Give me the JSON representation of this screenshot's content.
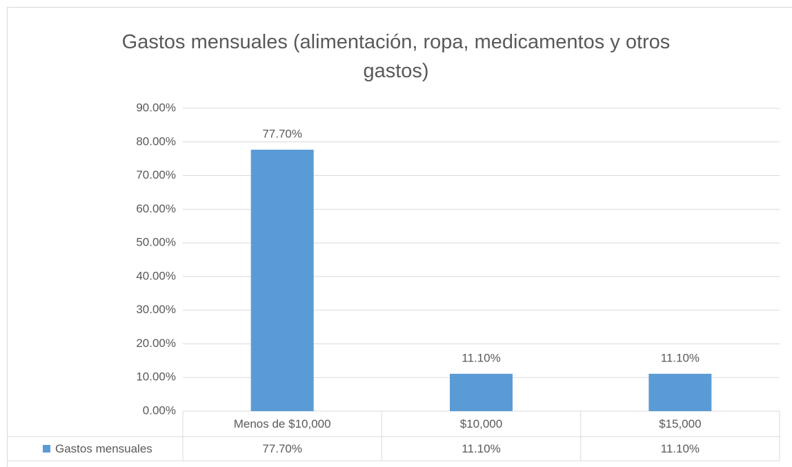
{
  "chart_data": {
    "type": "bar",
    "title": "Gastos mensuales (alimentación, ropa, medicamentos y otros gastos)",
    "categories": [
      "Menos de $10,000",
      "$10,000",
      "$15,000"
    ],
    "series": [
      {
        "name": "Gastos mensuales",
        "color": "#5b9bd5",
        "values": [
          77.7,
          11.1,
          11.1
        ],
        "value_labels": [
          "77.70%",
          "11.10%",
          "11.10%"
        ]
      }
    ],
    "ylim": [
      0,
      90
    ],
    "yticks": [
      {
        "value": 0,
        "label": "0.00%"
      },
      {
        "value": 10,
        "label": "10.00%"
      },
      {
        "value": 20,
        "label": "20.00%"
      },
      {
        "value": 30,
        "label": "30.00%"
      },
      {
        "value": 40,
        "label": "40.00%"
      },
      {
        "value": 50,
        "label": "50.00%"
      },
      {
        "value": 60,
        "label": "60.00%"
      },
      {
        "value": 70,
        "label": "70.00%"
      },
      {
        "value": 80,
        "label": "80.00%"
      },
      {
        "value": 90,
        "label": "90.00%"
      }
    ],
    "grid": true,
    "data_table": true
  }
}
